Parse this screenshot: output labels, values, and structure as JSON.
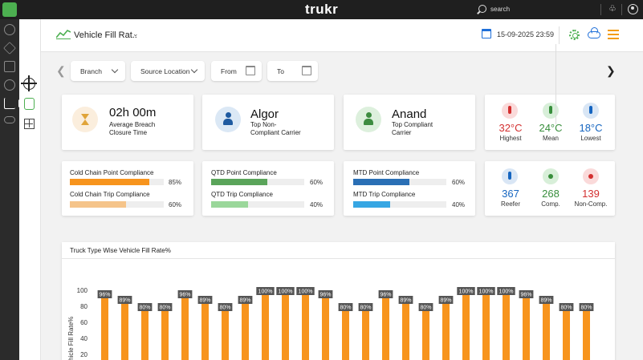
{
  "topbar": {
    "brand": "trukr",
    "search_label": "search",
    "icons": [
      "app-logo-icon",
      "search-icon",
      "bell-icon",
      "user-icon"
    ]
  },
  "rail": {
    "icons": [
      "layers-icon",
      "star-icon",
      "folder-icon",
      "dollar-icon",
      "chart-icon",
      "cloud-icon"
    ]
  },
  "header": {
    "title": "Vehicle Fill Rat..",
    "datetime": "15-09-2025 23:59"
  },
  "filters": {
    "branch": "Branch",
    "source_location": "Source Location",
    "from": "From",
    "to": "To"
  },
  "summary": {
    "breach": {
      "value": "02h 00m",
      "label1": "Average Breach",
      "label2": "Closure Time"
    },
    "non_compliant": {
      "value": "Algor",
      "label1": "Top Non-",
      "label2": "Compliant Carrier"
    },
    "compliant": {
      "value": "Anand",
      "label1": "Top Compliant",
      "label2": "Carrier"
    }
  },
  "temperature": {
    "highest": {
      "value": "32°C",
      "label": "Highest",
      "color": "#d32f2f"
    },
    "mean": {
      "value": "24°C",
      "label": "Mean",
      "color": "#388e3c"
    },
    "lowest": {
      "value": "18°C",
      "label": "Lowest",
      "color": "#1565c0"
    }
  },
  "compliance": {
    "cold_chain": [
      {
        "label": "Cold Chain Point Compliance",
        "pct": "85%",
        "fill": 0.85,
        "color": "#f7941d"
      },
      {
        "label": "Cold Chain Trip Compliance",
        "pct": "60%",
        "fill": 0.6,
        "color": "#f5c48a"
      }
    ],
    "qtd": [
      {
        "label": "QTD Point Compliance",
        "pct": "60%",
        "fill": 0.6,
        "color": "#5aa45a"
      },
      {
        "label": "QTD Trip Compliance",
        "pct": "40%",
        "fill": 0.4,
        "color": "#9ad79a"
      }
    ],
    "mtd": [
      {
        "label": "MTD Point Compliance",
        "pct": "60%",
        "fill": 0.6,
        "color": "#2a6fb5"
      },
      {
        "label": "MTD Trip Compliance",
        "pct": "40%",
        "fill": 0.4,
        "color": "#36a6e3"
      }
    ]
  },
  "vehicles": {
    "reefer": {
      "value": "367",
      "label": "Reefer",
      "color": "#1565c0"
    },
    "compliant": {
      "value": "268",
      "label": "Comp.",
      "color": "#388e3c"
    },
    "non_compliant": {
      "value": "139",
      "label": "Non-Comp.",
      "color": "#d32f2f"
    }
  },
  "chart_data": {
    "type": "bar",
    "title": "Truck Type Wise Vehicle Fill Rate%",
    "ylabel": "Vehicle Fill Rate%",
    "xlabel": "",
    "ylim": [
      0,
      100
    ],
    "yticks": [
      20,
      40,
      60,
      80,
      100
    ],
    "values": [
      96,
      89,
      80,
      80,
      96,
      89,
      80,
      89,
      100,
      100,
      100,
      96,
      80,
      80,
      96,
      89,
      80,
      89,
      100,
      100,
      100,
      96,
      89,
      80,
      80
    ],
    "data_labels": [
      "96%",
      "89%",
      "80%",
      "80%",
      "96%",
      "89%",
      "80%",
      "89%",
      "100%",
      "100%",
      "100%",
      "96%",
      "80%",
      "80%",
      "96%",
      "89%",
      "80%",
      "89%",
      "100%",
      "100%",
      "100%",
      "96%",
      "89%",
      "80%",
      "80%"
    ],
    "bar_color": "#f7941d",
    "label_bg": "#555555"
  }
}
